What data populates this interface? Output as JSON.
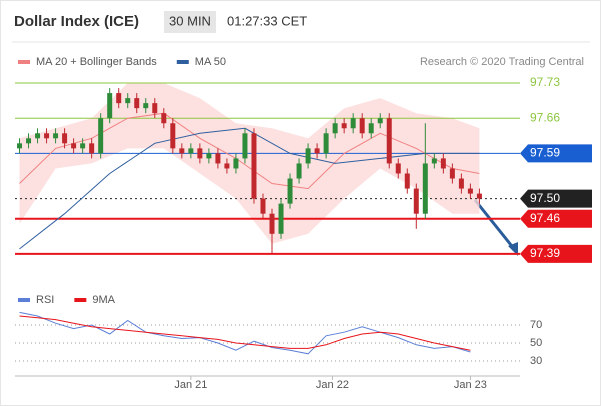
{
  "chart_data": {
    "type": "candlestick",
    "title": "Dollar Index (ICE)",
    "interval": "30 MIN",
    "time": "01:27:33 CET",
    "credit": "Research © 2020 Trading Central",
    "xlim": [
      -0.5,
      55.5
    ],
    "xticks": [
      {
        "value": 19,
        "label": "Jan 21"
      },
      {
        "value": 34.7,
        "label": "Jan 22"
      },
      {
        "value": 50,
        "label": "Jan 23"
      }
    ],
    "ylim": [
      97.348,
      97.746
    ],
    "up_color": "#2e8b3a",
    "down_color": "#c0282d",
    "candles": {
      "open": [
        97.6,
        97.61,
        97.62,
        97.63,
        97.62,
        97.63,
        97.61,
        97.6,
        97.61,
        97.59,
        97.66,
        97.71,
        97.69,
        97.7,
        97.68,
        97.69,
        97.67,
        97.65,
        97.6,
        97.59,
        97.6,
        97.58,
        97.59,
        97.57,
        97.56,
        97.58,
        97.63,
        97.5,
        97.47,
        97.43,
        97.49,
        97.54,
        97.57,
        97.6,
        97.59,
        97.63,
        97.65,
        97.64,
        97.66,
        97.63,
        97.65,
        97.66,
        97.57,
        97.55,
        97.52,
        97.47,
        97.57,
        97.58,
        97.56,
        97.54,
        97.52,
        97.51
      ],
      "high": [
        97.62,
        97.63,
        97.64,
        97.64,
        97.64,
        97.64,
        97.62,
        97.62,
        97.62,
        97.67,
        97.72,
        97.72,
        97.71,
        97.71,
        97.7,
        97.7,
        97.68,
        97.66,
        97.61,
        97.61,
        97.61,
        97.6,
        97.6,
        97.58,
        97.59,
        97.64,
        97.64,
        97.51,
        97.48,
        97.5,
        97.55,
        97.58,
        97.61,
        97.61,
        97.64,
        97.66,
        97.66,
        97.67,
        97.67,
        97.66,
        97.67,
        97.67,
        97.58,
        97.56,
        97.53,
        97.65,
        97.59,
        97.59,
        97.57,
        97.55,
        97.53,
        97.52
      ],
      "low": [
        97.59,
        97.6,
        97.61,
        97.61,
        97.61,
        97.6,
        97.59,
        97.59,
        97.58,
        97.58,
        97.65,
        97.68,
        97.68,
        97.67,
        97.67,
        97.66,
        97.64,
        97.59,
        97.58,
        97.58,
        97.57,
        97.57,
        97.56,
        97.55,
        97.55,
        97.57,
        97.49,
        97.46,
        97.39,
        97.42,
        97.48,
        97.53,
        97.56,
        97.58,
        97.58,
        97.62,
        97.63,
        97.63,
        97.62,
        97.62,
        97.64,
        97.56,
        97.54,
        97.51,
        97.44,
        97.46,
        97.56,
        97.55,
        97.53,
        97.51,
        97.5,
        97.49
      ],
      "close": [
        97.61,
        97.62,
        97.63,
        97.62,
        97.63,
        97.61,
        97.6,
        97.61,
        97.59,
        97.66,
        97.71,
        97.69,
        97.7,
        97.68,
        97.69,
        97.67,
        97.65,
        97.6,
        97.59,
        97.6,
        97.58,
        97.59,
        97.57,
        97.56,
        97.58,
        97.63,
        97.5,
        97.47,
        97.43,
        97.49,
        97.54,
        97.57,
        97.6,
        97.59,
        97.63,
        97.65,
        97.64,
        97.66,
        97.63,
        97.65,
        97.66,
        97.57,
        97.55,
        97.52,
        97.47,
        97.57,
        97.58,
        97.56,
        97.54,
        97.52,
        97.51,
        97.5
      ]
    },
    "band": {
      "color": "#fdd9d9",
      "x": [
        0,
        4,
        8,
        12,
        16,
        20,
        24,
        28,
        32,
        36,
        40,
        44,
        48,
        51
      ],
      "upper": [
        97.62,
        97.64,
        97.66,
        97.73,
        97.73,
        97.7,
        97.65,
        97.64,
        97.62,
        97.68,
        97.7,
        97.67,
        97.66,
        97.64
      ],
      "lower": [
        97.45,
        97.56,
        97.57,
        97.6,
        97.6,
        97.55,
        97.5,
        97.41,
        97.43,
        97.5,
        97.56,
        97.52,
        97.47,
        97.47
      ]
    },
    "lines": [
      {
        "name": "MA 20 + Bollinger Bands",
        "color": "#f08080",
        "x": [
          0,
          4,
          8,
          12,
          16,
          20,
          24,
          28,
          32,
          36,
          40,
          44,
          48,
          51
        ],
        "values": [
          97.53,
          97.6,
          97.62,
          97.66,
          97.67,
          97.62,
          97.58,
          97.53,
          97.52,
          97.59,
          97.63,
          97.6,
          97.56,
          97.55
        ]
      },
      {
        "name": "MA 50",
        "color": "#2f5f9e",
        "x": [
          0,
          5,
          10,
          15,
          20,
          25,
          30,
          35,
          40,
          45,
          51
        ],
        "values": [
          97.4,
          97.47,
          97.55,
          97.61,
          97.63,
          97.64,
          97.59,
          97.57,
          97.58,
          97.59,
          97.59
        ]
      }
    ],
    "levels": [
      {
        "value": 97.73,
        "label": "97.73",
        "color": "#8dc63f",
        "style": "label"
      },
      {
        "value": 97.66,
        "label": "97.66",
        "color": "#8dc63f",
        "style": "label"
      },
      {
        "value": 97.59,
        "label": "97.59",
        "color": "#1a5fd1",
        "style": "box"
      },
      {
        "value": 97.5,
        "label": "97.50",
        "color": "#222222",
        "style": "dotted"
      },
      {
        "value": 97.46,
        "label": "97.46",
        "color": "#e8141b",
        "style": "box"
      },
      {
        "value": 97.39,
        "label": "97.39",
        "color": "#e8141b",
        "style": "box"
      }
    ],
    "rsi": {
      "ylim": [
        20,
        90
      ],
      "yticks": [
        70,
        50,
        30
      ],
      "series": [
        {
          "name": "RSI",
          "color": "#5b7fd6",
          "x": [
            0,
            2,
            4,
            6,
            8,
            10,
            12,
            14,
            16,
            18,
            20,
            22,
            24,
            26,
            28,
            30,
            32,
            34,
            36,
            38,
            40,
            42,
            44,
            46,
            48,
            50
          ],
          "values": [
            84,
            80,
            72,
            66,
            70,
            60,
            75,
            62,
            58,
            55,
            56,
            50,
            42,
            52,
            45,
            42,
            38,
            58,
            62,
            68,
            62,
            56,
            48,
            44,
            46,
            40
          ]
        },
        {
          "name": "9MA",
          "color": "#e8141b",
          "x": [
            0,
            2,
            4,
            6,
            8,
            10,
            12,
            14,
            16,
            18,
            20,
            22,
            24,
            26,
            28,
            30,
            32,
            34,
            36,
            38,
            40,
            42,
            44,
            46,
            48,
            50
          ],
          "values": [
            80,
            78,
            76,
            72,
            68,
            66,
            64,
            62,
            60,
            58,
            56,
            54,
            50,
            48,
            46,
            44,
            44,
            48,
            55,
            60,
            62,
            60,
            55,
            50,
            46,
            42
          ]
        }
      ]
    }
  }
}
